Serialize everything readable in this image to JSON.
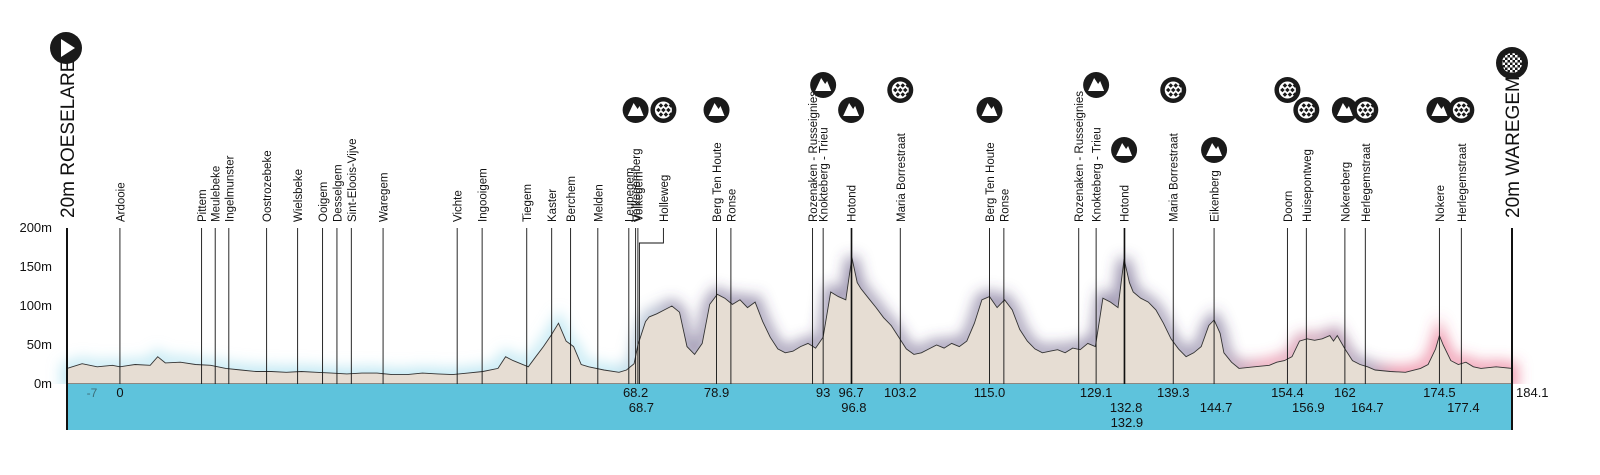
{
  "start": {
    "label": "20m ROESELARE",
    "icon": "play-icon"
  },
  "finish": {
    "label": "20m WAREGEM",
    "icon": "checkered-flag-icon"
  },
  "colors": {
    "profile_fill": "#e6ddd3",
    "band": "#5ec3dc",
    "glow_flat": "#8fd6ea",
    "glow_climb": "#4a3d6e",
    "glow_cobble": "#e2456b",
    "marker_circle": "#1a1a1a"
  },
  "chart_data": {
    "type": "area",
    "xlim": [
      -7,
      184.1
    ],
    "ylim": [
      0,
      200
    ],
    "y_ticks": [
      "0m",
      "50m",
      "100m",
      "150m",
      "200m"
    ],
    "y_tick_values": [
      0,
      50,
      100,
      150,
      200
    ],
    "start_km_label": "-7",
    "end_km_label": "184.1",
    "elevation": [
      [
        -7,
        20
      ],
      [
        -5,
        26
      ],
      [
        -3,
        22
      ],
      [
        -1,
        24
      ],
      [
        0,
        22
      ],
      [
        2,
        25
      ],
      [
        4,
        24
      ],
      [
        5,
        35
      ],
      [
        6,
        27
      ],
      [
        8,
        28
      ],
      [
        10,
        25
      ],
      [
        12,
        24
      ],
      [
        14,
        20
      ],
      [
        16,
        18
      ],
      [
        18,
        16
      ],
      [
        20,
        16
      ],
      [
        22,
        15
      ],
      [
        24,
        16
      ],
      [
        26,
        15
      ],
      [
        28,
        14
      ],
      [
        30,
        13
      ],
      [
        32,
        14
      ],
      [
        34,
        14
      ],
      [
        36,
        12
      ],
      [
        38,
        12
      ],
      [
        40,
        14
      ],
      [
        42,
        13
      ],
      [
        44,
        12
      ],
      [
        46,
        14
      ],
      [
        48,
        16
      ],
      [
        50,
        20
      ],
      [
        51,
        35
      ],
      [
        52,
        30
      ],
      [
        54,
        22
      ],
      [
        55,
        35
      ],
      [
        56,
        48
      ],
      [
        57,
        62
      ],
      [
        58,
        78
      ],
      [
        59,
        55
      ],
      [
        60,
        48
      ],
      [
        61,
        25
      ],
      [
        62,
        22
      ],
      [
        64,
        18
      ],
      [
        66,
        15
      ],
      [
        67,
        18
      ],
      [
        68,
        26
      ],
      [
        68.5,
        50
      ],
      [
        69,
        65
      ],
      [
        69.5,
        80
      ],
      [
        70,
        86
      ],
      [
        71,
        90
      ],
      [
        72,
        95
      ],
      [
        73,
        100
      ],
      [
        74,
        92
      ],
      [
        75,
        48
      ],
      [
        76,
        38
      ],
      [
        77,
        52
      ],
      [
        78,
        102
      ],
      [
        79,
        115
      ],
      [
        80,
        110
      ],
      [
        81,
        102
      ],
      [
        82,
        108
      ],
      [
        83,
        98
      ],
      [
        84,
        105
      ],
      [
        85,
        80
      ],
      [
        86,
        60
      ],
      [
        87,
        45
      ],
      [
        88,
        40
      ],
      [
        89,
        42
      ],
      [
        90,
        48
      ],
      [
        91,
        52
      ],
      [
        92,
        46
      ],
      [
        93,
        60
      ],
      [
        94,
        118
      ],
      [
        95,
        112
      ],
      [
        96,
        108
      ],
      [
        96.8,
        162
      ],
      [
        97.5,
        130
      ],
      [
        98,
        122
      ],
      [
        99,
        110
      ],
      [
        100,
        98
      ],
      [
        101,
        85
      ],
      [
        102,
        75
      ],
      [
        103,
        60
      ],
      [
        104,
        45
      ],
      [
        105,
        38
      ],
      [
        106,
        40
      ],
      [
        107,
        45
      ],
      [
        108,
        50
      ],
      [
        109,
        46
      ],
      [
        110,
        52
      ],
      [
        111,
        48
      ],
      [
        112,
        55
      ],
      [
        113,
        78
      ],
      [
        114,
        108
      ],
      [
        115,
        112
      ],
      [
        116,
        98
      ],
      [
        117,
        108
      ],
      [
        118,
        95
      ],
      [
        119,
        70
      ],
      [
        120,
        55
      ],
      [
        121,
        45
      ],
      [
        122,
        40
      ],
      [
        123,
        42
      ],
      [
        124,
        44
      ],
      [
        125,
        40
      ],
      [
        126,
        46
      ],
      [
        127,
        44
      ],
      [
        128,
        52
      ],
      [
        129,
        48
      ],
      [
        130,
        110
      ],
      [
        131,
        105
      ],
      [
        132,
        98
      ],
      [
        132.8,
        160
      ],
      [
        133.5,
        130
      ],
      [
        134,
        118
      ],
      [
        135,
        110
      ],
      [
        136,
        105
      ],
      [
        137,
        95
      ],
      [
        138,
        78
      ],
      [
        139,
        58
      ],
      [
        140,
        45
      ],
      [
        141,
        35
      ],
      [
        142,
        40
      ],
      [
        143,
        48
      ],
      [
        144,
        75
      ],
      [
        144.7,
        82
      ],
      [
        145.5,
        65
      ],
      [
        146,
        40
      ],
      [
        147,
        28
      ],
      [
        148,
        20
      ],
      [
        150,
        22
      ],
      [
        152,
        24
      ],
      [
        153,
        28
      ],
      [
        154,
        30
      ],
      [
        155,
        35
      ],
      [
        156,
        55
      ],
      [
        157,
        58
      ],
      [
        158,
        56
      ],
      [
        159,
        58
      ],
      [
        160,
        62
      ],
      [
        160.5,
        55
      ],
      [
        161,
        62
      ],
      [
        162,
        45
      ],
      [
        163,
        30
      ],
      [
        164,
        25
      ],
      [
        165,
        22
      ],
      [
        166,
        18
      ],
      [
        168,
        16
      ],
      [
        170,
        15
      ],
      [
        172,
        20
      ],
      [
        173,
        25
      ],
      [
        174,
        45
      ],
      [
        174.5,
        62
      ],
      [
        175,
        50
      ],
      [
        176,
        30
      ],
      [
        177,
        25
      ],
      [
        178,
        28
      ],
      [
        179,
        22
      ],
      [
        180,
        20
      ],
      [
        182,
        22
      ],
      [
        184.1,
        20
      ]
    ]
  },
  "places": [
    {
      "name": "Ardooie",
      "km": 0
    },
    {
      "name": "Pittem",
      "km": 10.8
    },
    {
      "name": "Meulebeke",
      "km": 12.6
    },
    {
      "name": "Ingelmunster",
      "km": 14.4
    },
    {
      "name": "Oostrozebeke",
      "km": 19.4
    },
    {
      "name": "Wielsbeke",
      "km": 23.5
    },
    {
      "name": "Ooigem",
      "km": 26.8
    },
    {
      "name": "Desselgem",
      "km": 28.7
    },
    {
      "name": "Sint-Eloois-Vijve",
      "km": 30.6
    },
    {
      "name": "Waregem",
      "km": 34.8
    },
    {
      "name": "Vichte",
      "km": 44.6
    },
    {
      "name": "Ingooigem",
      "km": 47.9
    },
    {
      "name": "Tiegem",
      "km": 53.8
    },
    {
      "name": "Kaster",
      "km": 57.1
    },
    {
      "name": "Berchem",
      "km": 59.6
    },
    {
      "name": "Melden",
      "km": 63.2
    },
    {
      "name": "Leupegem",
      "km": 67.3
    },
    {
      "name": "Volkegem",
      "km": 68.5
    },
    {
      "name": "Ronse",
      "km": 80.8
    },
    {
      "name": "Rozenaken - Russeignies",
      "km": 91.6
    },
    {
      "name": "Ronse",
      "km": 116.9
    },
    {
      "name": "Rozenaken - Russeignies",
      "km": 126.8
    }
  ],
  "climbs": [
    {
      "name": "Volkegemberg",
      "km": 68.2,
      "km_label": "68.2",
      "marker": "climb",
      "sec": false
    },
    {
      "name": "Holleweg",
      "km": 68.7,
      "km_label": "68.7",
      "marker": "cobbles",
      "sec": true
    },
    {
      "name": "Berg Ten Houte",
      "km": 78.9,
      "km_label": "78.9",
      "marker": "climb",
      "sec": false
    },
    {
      "name": "Knokteberg - Trieu",
      "km": 93,
      "km_label": "93",
      "marker": "climb",
      "sec": false
    },
    {
      "name": "Hotond",
      "km": 96.7,
      "km_label": "96.7",
      "marker": "climb",
      "sec": false
    },
    {
      "name": "",
      "km": 96.8,
      "km_label": "96.8",
      "marker": "",
      "sec": true
    },
    {
      "name": "Maria Borrestraat",
      "km": 103.2,
      "km_label": "103.2",
      "marker": "cobbles",
      "sec": false
    },
    {
      "name": "Berg Ten Houte",
      "km": 115.0,
      "km_label": "115.0",
      "marker": "climb",
      "sec": false
    },
    {
      "name": "Knokteberg - Trieu",
      "km": 129.1,
      "km_label": "129.1",
      "marker": "climb",
      "sec": false
    },
    {
      "name": "Hotond",
      "km": 132.8,
      "km_label": "132.8",
      "marker": "climb",
      "sec": true
    },
    {
      "name": "",
      "km": 132.9,
      "km_label": "132.9",
      "marker": "",
      "sec": "third"
    },
    {
      "name": "Maria Borrestraat",
      "km": 139.3,
      "km_label": "139.3",
      "marker": "cobbles",
      "sec": false
    },
    {
      "name": "Eikenberg",
      "km": 144.7,
      "km_label": "144.7",
      "marker": "climb",
      "sec": true
    },
    {
      "name": "Doorn",
      "km": 154.4,
      "km_label": "154.4",
      "marker": "cobbles",
      "sec": false
    },
    {
      "name": "Huisepontweg",
      "km": 156.9,
      "km_label": "156.9",
      "marker": "cobbles",
      "sec": true
    },
    {
      "name": "Nokereberg",
      "km": 162,
      "km_label": "162",
      "marker": "climb",
      "sec": false
    },
    {
      "name": "Herlegemstraat",
      "km": 164.7,
      "km_label": "164.7",
      "marker": "cobbles",
      "sec": true
    },
    {
      "name": "Nokere",
      "km": 174.5,
      "km_label": "174.5",
      "marker": "climb",
      "sec": false
    },
    {
      "name": "Herlegemstraat",
      "km": 177.4,
      "km_label": "177.4",
      "marker": "cobbles",
      "sec": true
    }
  ]
}
